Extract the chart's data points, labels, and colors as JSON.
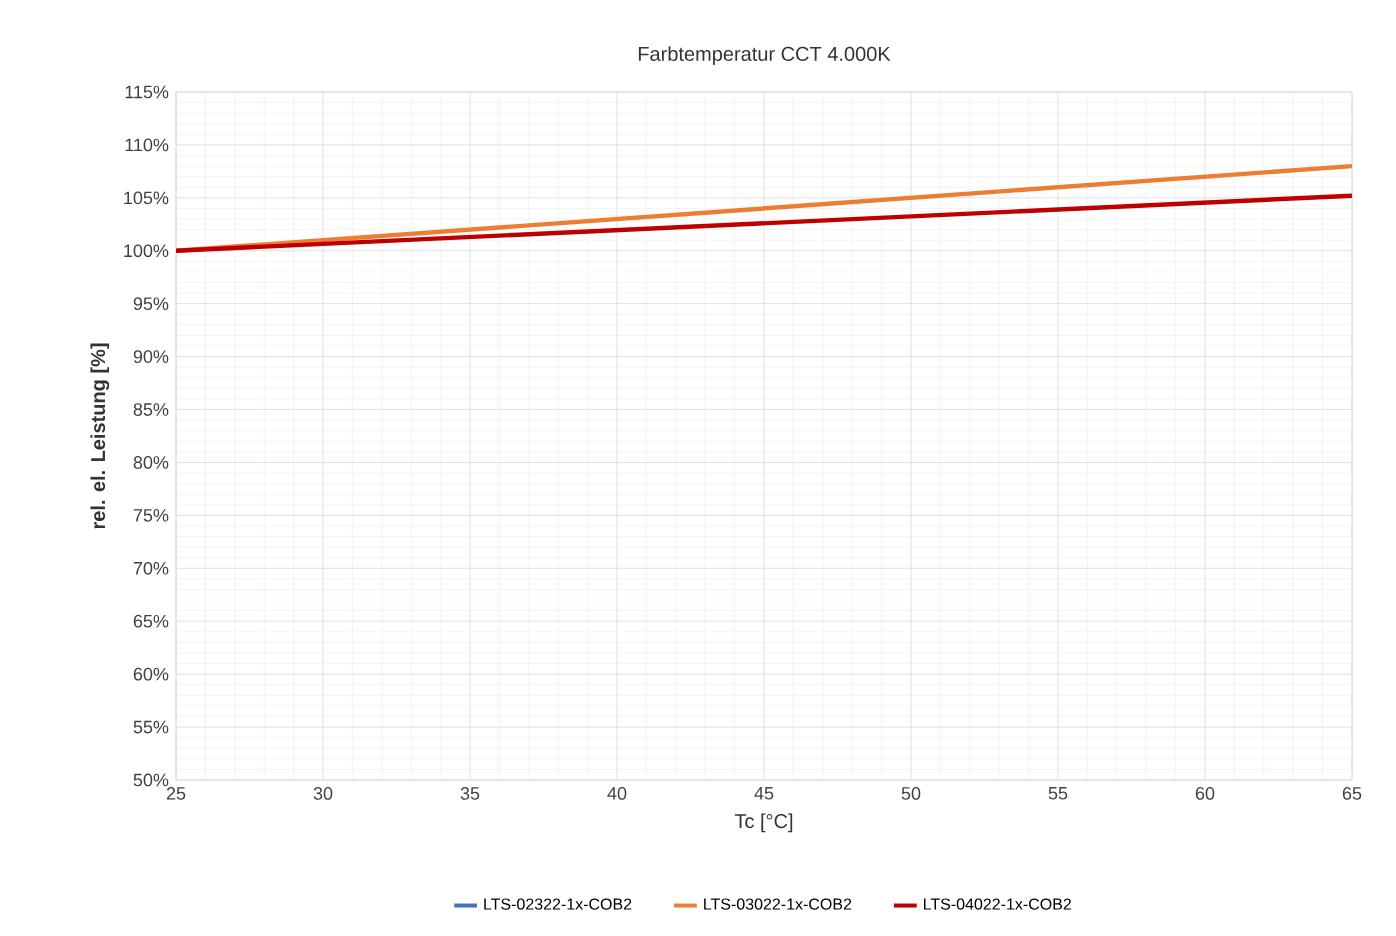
{
  "chart_data": {
    "type": "line",
    "title": "Farbtemperatur CCT 4.000K",
    "xlabel": "Tc [°C]",
    "ylabel": "rel. el. Leistung [%]",
    "x": [
      25,
      45,
      65
    ],
    "series": [
      {
        "name": "LTS-02322-1x-COB2",
        "color": "#4472c4",
        "values": [
          null,
          null,
          null
        ]
      },
      {
        "name": "LTS-03022-1x-COB2",
        "color": "#ed7d31",
        "values": [
          100,
          104,
          108
        ]
      },
      {
        "name": "LTS-04022-1x-COB2",
        "color": "#c00000",
        "values": [
          100,
          102.6,
          105.2
        ]
      }
    ],
    "xlim": [
      25,
      65
    ],
    "xticks": [
      25,
      30,
      35,
      40,
      45,
      50,
      55,
      60,
      65
    ],
    "ylim": [
      50,
      115
    ],
    "yticks": [
      {
        "value": 50,
        "label": "50%"
      },
      {
        "value": 55,
        "label": "55%"
      },
      {
        "value": 60,
        "label": "60%"
      },
      {
        "value": 65,
        "label": "65%"
      },
      {
        "value": 70,
        "label": "70%"
      },
      {
        "value": 75,
        "label": "75%"
      },
      {
        "value": 80,
        "label": "80%"
      },
      {
        "value": 85,
        "label": "85%"
      },
      {
        "value": 90,
        "label": "90%"
      },
      {
        "value": 95,
        "label": "95%"
      },
      {
        "value": 100,
        "label": "100%"
      },
      {
        "value": 105,
        "label": "105%"
      },
      {
        "value": 110,
        "label": "110%"
      },
      {
        "value": 115,
        "label": "115%"
      }
    ],
    "grid": true,
    "legend": "bottom",
    "marker": "none",
    "line_style": "solid"
  }
}
